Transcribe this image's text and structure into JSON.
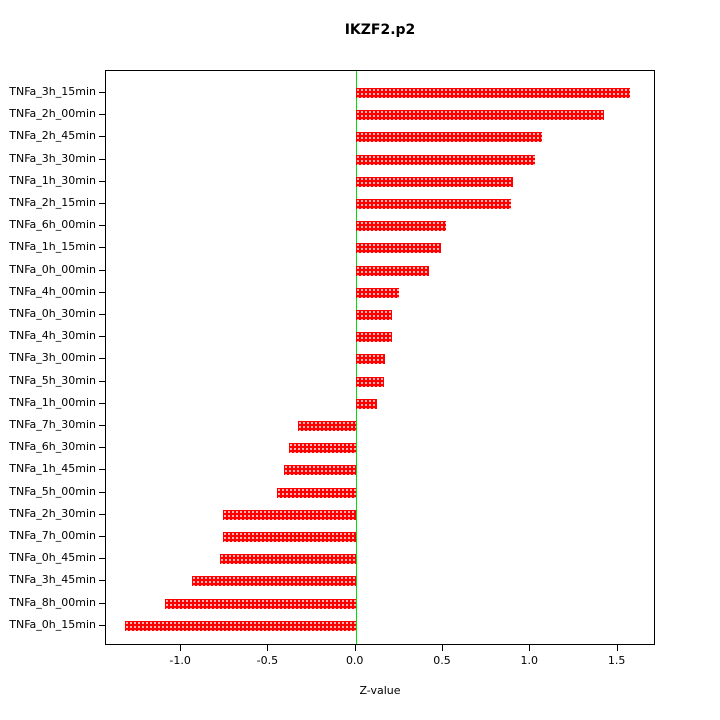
{
  "chart_data": {
    "type": "bar",
    "orientation": "horizontal",
    "title": "IKZF2.p2",
    "xlabel": "Z-value",
    "categories": [
      "TNFa_3h_15min",
      "TNFa_2h_00min",
      "TNFa_2h_45min",
      "TNFa_3h_30min",
      "TNFa_1h_30min",
      "TNFa_2h_15min",
      "TNFa_6h_00min",
      "TNFa_1h_15min",
      "TNFa_0h_00min",
      "TNFa_4h_00min",
      "TNFa_0h_30min",
      "TNFa_4h_30min",
      "TNFa_3h_00min",
      "TNFa_5h_30min",
      "TNFa_1h_00min",
      "TNFa_7h_30min",
      "TNFa_6h_30min",
      "TNFa_1h_45min",
      "TNFa_5h_00min",
      "TNFa_2h_30min",
      "TNFa_7h_00min",
      "TNFa_0h_45min",
      "TNFa_3h_45min",
      "TNFa_8h_00min",
      "TNFa_0h_15min"
    ],
    "values": [
      1.57,
      1.42,
      1.07,
      1.03,
      0.9,
      0.89,
      0.52,
      0.49,
      0.42,
      0.25,
      0.21,
      0.21,
      0.17,
      0.16,
      0.12,
      -0.33,
      -0.38,
      -0.41,
      -0.45,
      -0.76,
      -0.76,
      -0.78,
      -0.94,
      -1.09,
      -1.32
    ],
    "xlim": [
      -1.43,
      1.72
    ],
    "xticks": [
      -1.0,
      -0.5,
      0.0,
      0.5,
      1.0,
      1.5
    ],
    "xtick_labels": [
      "-1.0",
      "-0.5",
      "0.0",
      "0.5",
      "1.0",
      "1.5"
    ],
    "bar_color": "#ff0000",
    "zero_line_color": "#00e000",
    "grid": false
  }
}
